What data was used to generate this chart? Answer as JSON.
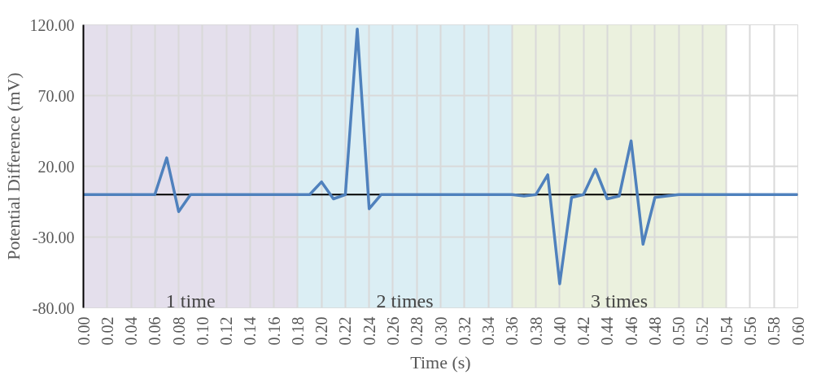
{
  "chart_data": {
    "type": "line",
    "xlabel": "Time (s)",
    "ylabel": "Potential Difference (mV)",
    "x": [
      0.0,
      0.01,
      0.02,
      0.03,
      0.04,
      0.05,
      0.06,
      0.07,
      0.08,
      0.09,
      0.1,
      0.11,
      0.12,
      0.13,
      0.14,
      0.15,
      0.16,
      0.17,
      0.18,
      0.19,
      0.2,
      0.21,
      0.22,
      0.23,
      0.24,
      0.25,
      0.26,
      0.27,
      0.28,
      0.29,
      0.3,
      0.31,
      0.32,
      0.33,
      0.34,
      0.35,
      0.36,
      0.37,
      0.38,
      0.39,
      0.4,
      0.41,
      0.42,
      0.43,
      0.44,
      0.45,
      0.46,
      0.47,
      0.48,
      0.49,
      0.5,
      0.51,
      0.52,
      0.53,
      0.54,
      0.55,
      0.56,
      0.57,
      0.58,
      0.59,
      0.6
    ],
    "series": [
      {
        "color": "#4f81bd",
        "values": [
          0,
          0,
          0,
          0,
          0,
          0,
          0,
          26,
          -12,
          0,
          0,
          0,
          0,
          0,
          0,
          0,
          0,
          0,
          0,
          0,
          9,
          -3,
          0,
          117,
          -10,
          0,
          0,
          0,
          0,
          0,
          0,
          0,
          0,
          0,
          0,
          0,
          0,
          -1,
          0,
          14,
          -63,
          -2,
          0,
          18,
          -3,
          -1,
          38,
          -35,
          -2,
          -1,
          0,
          0,
          0,
          0,
          0,
          0,
          0,
          0,
          0,
          0,
          0
        ]
      }
    ],
    "xlim": [
      0,
      0.6
    ],
    "ylim": [
      -80,
      120
    ],
    "xticks": [
      {
        "value": 0.0,
        "label": "0.00"
      },
      {
        "value": 0.02,
        "label": "0.02"
      },
      {
        "value": 0.04,
        "label": "0.04"
      },
      {
        "value": 0.06,
        "label": "0.06"
      },
      {
        "value": 0.08,
        "label": "0.08"
      },
      {
        "value": 0.1,
        "label": "0.10"
      },
      {
        "value": 0.12,
        "label": "0.12"
      },
      {
        "value": 0.14,
        "label": "0.14"
      },
      {
        "value": 0.16,
        "label": "0.16"
      },
      {
        "value": 0.18,
        "label": "0.18"
      },
      {
        "value": 0.2,
        "label": "0.20"
      },
      {
        "value": 0.22,
        "label": "0.22"
      },
      {
        "value": 0.24,
        "label": "0.24"
      },
      {
        "value": 0.26,
        "label": "0.26"
      },
      {
        "value": 0.28,
        "label": "0.28"
      },
      {
        "value": 0.3,
        "label": "0.30"
      },
      {
        "value": 0.32,
        "label": "0.32"
      },
      {
        "value": 0.34,
        "label": "0.34"
      },
      {
        "value": 0.36,
        "label": "0.36"
      },
      {
        "value": 0.38,
        "label": "0.38"
      },
      {
        "value": 0.4,
        "label": "0.40"
      },
      {
        "value": 0.42,
        "label": "0.42"
      },
      {
        "value": 0.44,
        "label": "0.44"
      },
      {
        "value": 0.46,
        "label": "0.46"
      },
      {
        "value": 0.48,
        "label": "0.48"
      },
      {
        "value": 0.5,
        "label": "0.50"
      },
      {
        "value": 0.52,
        "label": "0.52"
      },
      {
        "value": 0.54,
        "label": "0.54"
      },
      {
        "value": 0.56,
        "label": "0.56"
      },
      {
        "value": 0.58,
        "label": "0.58"
      },
      {
        "value": 0.6,
        "label": "0.60"
      }
    ],
    "yticks": [
      {
        "value": -80,
        "label": "-80.00"
      },
      {
        "value": -30,
        "label": "-30.00"
      },
      {
        "value": 20,
        "label": "20.00"
      },
      {
        "value": 70,
        "label": "70.00"
      },
      {
        "value": 120,
        "label": "120.00"
      }
    ],
    "bands": [
      {
        "axis": "x",
        "from": 0,
        "to": 0.18,
        "label": "1 time",
        "color": "#e4dfec"
      },
      {
        "axis": "x",
        "from": 0.18,
        "to": 0.36,
        "label": "2 times",
        "color": "#dbeef4"
      },
      {
        "axis": "x",
        "from": 0.36,
        "to": 0.54,
        "label": "3 times",
        "color": "#ebf1de"
      }
    ],
    "grid": true,
    "marker": "none",
    "line_style": "solid"
  }
}
